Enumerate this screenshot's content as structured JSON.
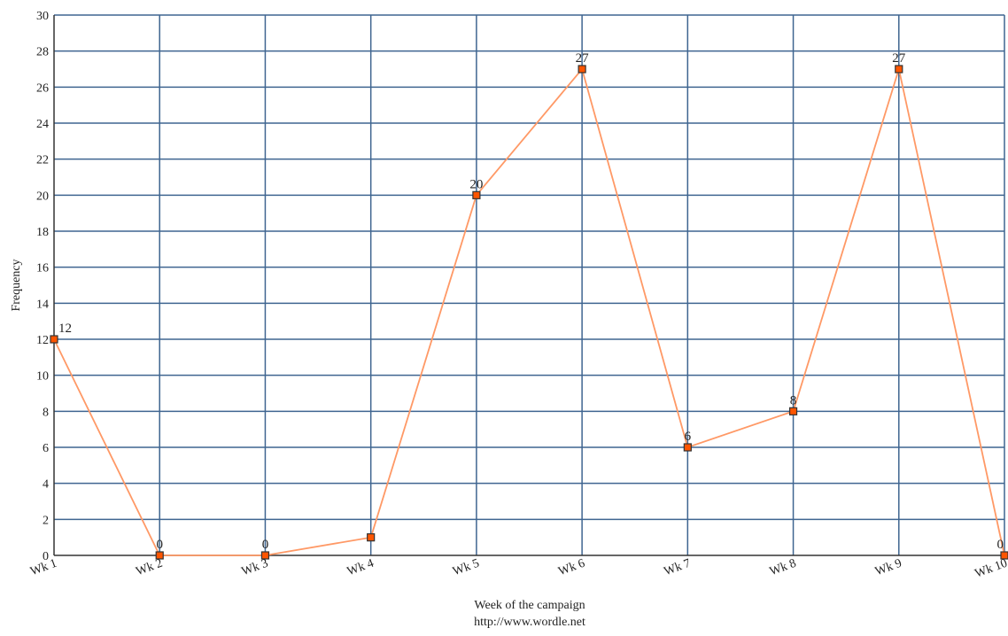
{
  "chart_data": {
    "type": "line",
    "categories": [
      "Wk 1",
      "Wk 2",
      "Wk 3",
      "Wk 4",
      "Wk 5",
      "Wk 6",
      "Wk 7",
      "Wk 8",
      "Wk 9",
      "Wk 10"
    ],
    "values": [
      12,
      0,
      0,
      1,
      20,
      27,
      6,
      8,
      27,
      0
    ],
    "data_labels": [
      "12",
      "0",
      "0",
      "",
      "20",
      "27",
      "6",
      "8",
      "27",
      "0"
    ],
    "ylim": [
      0,
      30
    ],
    "yticks": [
      0,
      2,
      4,
      6,
      8,
      10,
      12,
      14,
      16,
      18,
      20,
      22,
      24,
      26,
      28,
      30
    ],
    "xlabel": "Week of the campaign",
    "ylabel": "Frequency",
    "footer": "http://www.wordle.net",
    "grid": true,
    "colors": {
      "line": "#ff9966",
      "marker_fill": "#ff5500",
      "marker_stroke": "#333333",
      "grid": "#3f6590",
      "axis": "#333333"
    }
  }
}
